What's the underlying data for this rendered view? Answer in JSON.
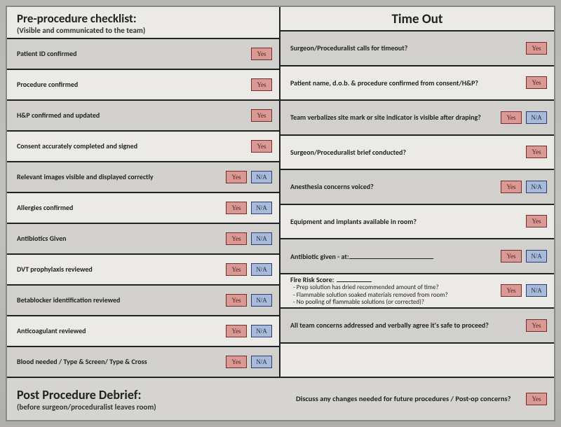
{
  "colors": {
    "yes_bg": "#d89a94",
    "yes_border": "#7a2a2a",
    "na_bg": "#a8bad6",
    "na_border": "#2a3a7a",
    "row_odd": "#d2d0cc",
    "row_even": "#eceae6",
    "rule": "#222222"
  },
  "buttons": {
    "yes_label": "Yes",
    "na_label": "N/A"
  },
  "left": {
    "title": "Pre-procedure checklist:",
    "subtitle": "(Visible and communicated to the team)",
    "items": [
      {
        "label": "Patient ID confirmed",
        "yes": true,
        "na": false
      },
      {
        "label": "Procedure confirmed",
        "yes": true,
        "na": false
      },
      {
        "label": "H&P confirmed and updated",
        "yes": true,
        "na": false
      },
      {
        "label": "Consent accurately completed and signed",
        "yes": true,
        "na": false
      },
      {
        "label": "Relevant images visible and displayed correctly",
        "yes": true,
        "na": true
      },
      {
        "label": "Allergies confirmed",
        "yes": true,
        "na": true
      },
      {
        "label": "Antibiotics Given",
        "yes": true,
        "na": true
      },
      {
        "label": "DVT prophylaxis reviewed",
        "yes": true,
        "na": true
      },
      {
        "label": "Betablocker identification reviewed",
        "yes": true,
        "na": true
      },
      {
        "label": "Anticoagulant reviewed",
        "yes": true,
        "na": true
      },
      {
        "label": "Blood needed / Type & Screen/ Type & Cross",
        "yes": true,
        "na": true
      }
    ]
  },
  "right": {
    "title": "Time Out",
    "items": [
      {
        "label": "Surgeon/Proceduralist calls for timeout?",
        "yes": true,
        "na": false
      },
      {
        "label": "Patient name, d.o.b. & procedure confirmed from consent/H&P?",
        "yes": true,
        "na": false
      },
      {
        "label": "Team verbalizes site mark or site indicator is visible after draping?",
        "yes": true,
        "na": true
      },
      {
        "label": "Surgeon/Proceduralist brief conducted?",
        "yes": true,
        "na": false
      },
      {
        "label": "Anesthesia concerns voiced?",
        "yes": true,
        "na": true
      },
      {
        "label": "Equipment and implants available in room?",
        "yes": true,
        "na": false
      },
      {
        "label": "Antibiotic given - at:",
        "blank": true,
        "yes": true,
        "na": true
      },
      {
        "label": "Fire Risk Score:",
        "blank_short": true,
        "sub": [
          "- Prep solution has dried recommended amount of time?",
          "- Flammable solution soaked materials removed from room?",
          "- No pooling of flammable solutions (or corrected)?"
        ],
        "yes": true,
        "na": true
      },
      {
        "label": "All team concerns addressed and verbally agree it's safe to proceed?",
        "yes": true,
        "na": false
      },
      {
        "label": "",
        "empty": true
      }
    ]
  },
  "bottom": {
    "title": "Post Procedure Debrief:",
    "subtitle": "(before surgeon/proceduralist leaves room)",
    "question": "Discuss any changes needed for future procedures / Post-op concerns?",
    "yes": true
  }
}
